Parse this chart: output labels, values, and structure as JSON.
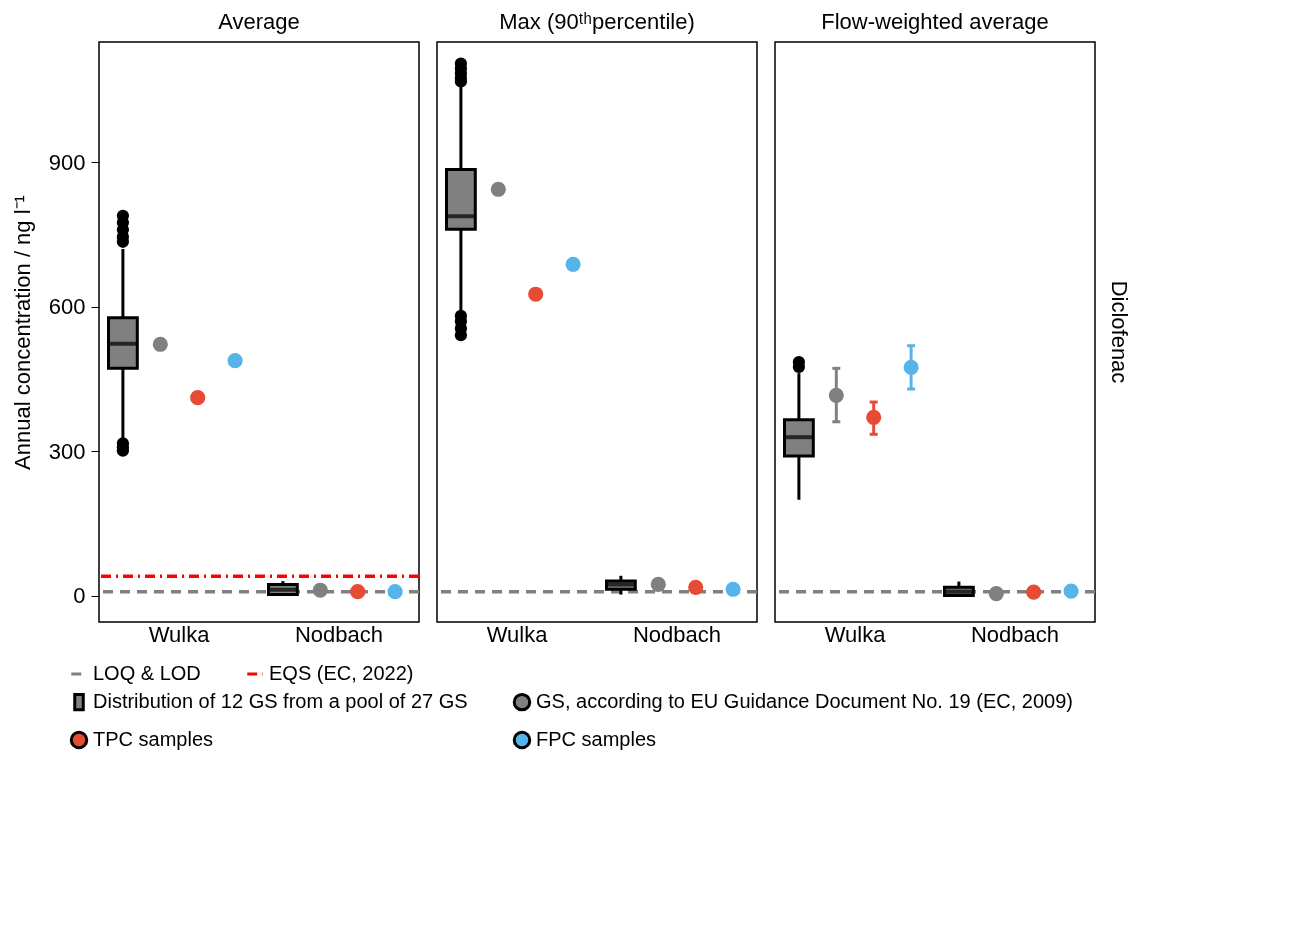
{
  "chart_data": [
    {
      "type": "box",
      "title": "Average",
      "ylabel": "Annual concentration / ng l⁻¹",
      "categories": [
        "Wulka",
        "Nodbach"
      ],
      "ylim": [
        -55,
        1150
      ],
      "yticks": [
        0,
        300,
        600,
        900
      ],
      "marker": "circle",
      "legend": "bottom",
      "series": [
        {
          "type": "box",
          "name": "Distribution of 12 GS from a pool of 27 GS",
          "color": "#808080",
          "boxes": [
            {
              "low": 327,
              "q1": 472,
              "median": 523,
              "q3": 577,
              "high": 720,
              "outliers": [
                789,
                775,
                760,
                745,
                735,
                316,
                308,
                301
              ]
            },
            {
              "low": 0,
              "q1": 2,
              "median": 12,
              "q3": 23,
              "high": 30
            }
          ]
        },
        {
          "type": "scatter",
          "name": "GS, according to EU Guidance Document No. 19 (EC, 2009)",
          "color": "#808080",
          "x": [
            "Wulka",
            "Nodbach"
          ],
          "values": [
            522,
            11
          ],
          "errors": [
            5,
            5
          ]
        },
        {
          "type": "scatter",
          "name": "TPC samples",
          "color": "#e64b35",
          "x": [
            "Wulka",
            "Nodbach"
          ],
          "values": [
            411,
            8
          ],
          "errors": [
            5,
            5
          ]
        },
        {
          "type": "scatter",
          "name": "FPC samples",
          "color": "#56b4e9",
          "x": [
            "Wulka",
            "Nodbach"
          ],
          "values": [
            488,
            8
          ],
          "errors": [
            5,
            5
          ]
        }
      ],
      "ref_lines": [
        {
          "axis": "y",
          "value": 8,
          "label": "LOQ & LOD",
          "color": "#808080",
          "line_style": "dashed"
        },
        {
          "axis": "y",
          "value": 40,
          "label": "EQS (EC, 2022)",
          "color": "#ff0000",
          "line_style": "dashdot"
        }
      ]
    },
    {
      "type": "box",
      "title": "Max (90ᵗʰpercentile)",
      "categories": [
        "Wulka",
        "Nodbach"
      ],
      "ylim": [
        -55,
        1150
      ],
      "yticks": [
        0,
        300,
        600,
        900
      ],
      "tick_labels": "x",
      "marker": "circle",
      "legend": "bottom",
      "series": [
        {
          "type": "box",
          "name": "Distribution of 12 GS from a pool of 27 GS",
          "color": "#808080",
          "boxes": [
            {
              "low": 585,
              "q1": 761,
              "median": 788,
              "q3": 885,
              "high": 1064,
              "outliers": [
                1105,
                1095,
                1085,
                1075,
                1068,
                581,
                570,
                555,
                541
              ]
            },
            {
              "low": 2,
              "q1": 13,
              "median": 23,
              "q3": 30,
              "high": 41
            }
          ]
        },
        {
          "type": "scatter",
          "name": "GS, according to EU Guidance Document No. 19 (EC, 2009)",
          "color": "#808080",
          "x": [
            "Wulka",
            "Nodbach"
          ],
          "values": [
            844,
            23
          ],
          "errors": [
            5,
            5
          ]
        },
        {
          "type": "scatter",
          "name": "TPC samples",
          "color": "#e64b35",
          "x": [
            "Wulka",
            "Nodbach"
          ],
          "values": [
            626,
            17
          ],
          "errors": [
            5,
            5
          ]
        },
        {
          "type": "scatter",
          "name": "FPC samples",
          "color": "#56b4e9",
          "x": [
            "Wulka",
            "Nodbach"
          ],
          "values": [
            688,
            13
          ],
          "errors": [
            5,
            5
          ]
        }
      ],
      "ref_lines": [
        {
          "axis": "y",
          "value": 8,
          "color": "#808080",
          "line_style": "dashed"
        }
      ]
    },
    {
      "type": "box",
      "title": "Flow-weighted average",
      "categories": [
        "Wulka",
        "Nodbach"
      ],
      "ylim": [
        -55,
        1150
      ],
      "yticks": [
        0,
        300,
        600,
        900
      ],
      "tick_labels": "x",
      "marker": "circle",
      "legend": "bottom",
      "annotations": [
        "Diclofenac"
      ],
      "series": [
        {
          "type": "box",
          "name": "Distribution of 12 GS from a pool of 27 GS",
          "color": "#808080",
          "boxes": [
            {
              "low": 199,
              "q1": 290,
              "median": 329,
              "q3": 365,
              "high": 462,
              "outliers": [
                485,
                475
              ]
            },
            {
              "low": 0,
              "q1": 0,
              "median": 8,
              "q3": 17,
              "high": 29
            }
          ]
        },
        {
          "type": "scatter",
          "name": "GS, according to EU Guidance Document No. 19 (EC, 2009)",
          "color": "#808080",
          "x": [
            "Wulka",
            "Nodbach"
          ],
          "values": [
            416,
            4
          ],
          "errors": [
            [
              361,
              472
            ],
            5
          ]
        },
        {
          "type": "scatter",
          "name": "TPC samples",
          "color": "#e64b35",
          "x": [
            "Wulka",
            "Nodbach"
          ],
          "values": [
            370,
            7
          ],
          "errors": [
            [
              335,
              402
            ],
            5
          ]
        },
        {
          "type": "scatter",
          "name": "FPC samples",
          "color": "#56b4e9",
          "x": [
            "Wulka",
            "Nodbach"
          ],
          "values": [
            474,
            9
          ],
          "errors": [
            [
              429,
              519
            ],
            5
          ]
        }
      ],
      "ref_lines": [
        {
          "axis": "y",
          "value": 8,
          "color": "#808080",
          "line_style": "dashed"
        }
      ]
    }
  ]
}
